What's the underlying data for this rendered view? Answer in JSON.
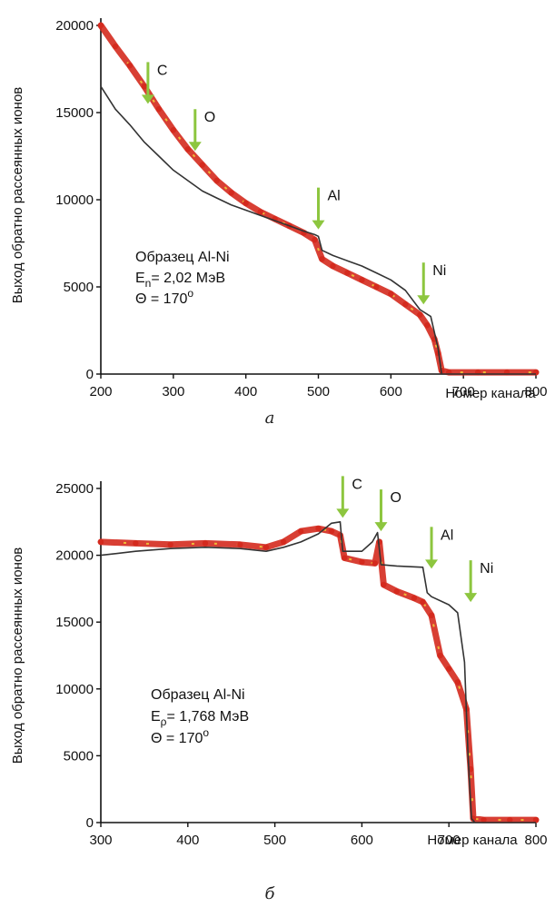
{
  "chart_data": [
    {
      "type": "line",
      "panel_label": "а",
      "xlabel": "Номер канала",
      "ylabel": "Выход обратно рассеянных ионов",
      "xlim": [
        200,
        800
      ],
      "ylim": [
        0,
        20000
      ],
      "x_ticks": [
        "200",
        "300",
        "400",
        "500",
        "600",
        "700",
        "800"
      ],
      "y_ticks": [
        "0",
        "5000",
        "10000",
        "15000",
        "20000"
      ],
      "grid": false,
      "annotation_lines": [
        "Образец Al-Ni",
        "E",
        "n",
        "= 2,02 МэВ",
        "Θ = 170",
        "o"
      ],
      "element_markers": [
        {
          "label": "C",
          "x": 265,
          "y_tip": 15500
        },
        {
          "label": "O",
          "x": 330,
          "y_tip": 12800
        },
        {
          "label": "Al",
          "x": 500,
          "y_tip": 8300
        },
        {
          "label": "Ni",
          "x": 645,
          "y_tip": 4000
        }
      ],
      "series": [
        {
          "role": "experimental",
          "color": "#d42a1e",
          "x": [
            200,
            220,
            240,
            260,
            280,
            300,
            320,
            340,
            360,
            380,
            400,
            420,
            440,
            460,
            480,
            495,
            505,
            520,
            540,
            560,
            580,
            600,
            620,
            640,
            650,
            660,
            665,
            670,
            680,
            720,
            760,
            800
          ],
          "y": [
            20000,
            18800,
            17700,
            16500,
            15200,
            14000,
            12900,
            12000,
            11100,
            10400,
            9800,
            9300,
            8900,
            8500,
            8100,
            7700,
            6600,
            6200,
            5800,
            5400,
            5000,
            4600,
            4000,
            3400,
            2800,
            2000,
            1200,
            200,
            100,
            100,
            100,
            100
          ]
        },
        {
          "role": "simulated",
          "color": "#333333",
          "x": [
            200,
            220,
            240,
            260,
            280,
            300,
            320,
            340,
            360,
            380,
            400,
            420,
            440,
            460,
            480,
            495,
            500,
            505,
            520,
            540,
            560,
            580,
            600,
            620,
            640,
            655,
            665,
            670,
            680,
            720,
            760,
            800
          ],
          "y": [
            16500,
            15200,
            14300,
            13300,
            12500,
            11700,
            11100,
            10500,
            10100,
            9700,
            9400,
            9100,
            8800,
            8500,
            8200,
            8000,
            7900,
            7100,
            6800,
            6500,
            6200,
            5800,
            5400,
            4800,
            3700,
            3300,
            1500,
            0,
            0,
            0,
            0,
            0
          ]
        }
      ]
    },
    {
      "type": "line",
      "panel_label": "б",
      "xlabel": "Номер канала",
      "ylabel": "Выход обратно рассеянных ионов",
      "xlim": [
        300,
        800
      ],
      "ylim": [
        0,
        25000
      ],
      "x_ticks": [
        "300",
        "400",
        "500",
        "600",
        "700",
        "800"
      ],
      "y_ticks": [
        "0",
        "5000",
        "10000",
        "15000",
        "20000",
        "25000"
      ],
      "grid": false,
      "annotation_lines": [
        "Образец Al-Ni",
        "E",
        "ρ",
        "= 1,768 МэВ",
        "Θ = 170",
        "o"
      ],
      "element_markers": [
        {
          "label": "C",
          "x": 578,
          "y_tip": 22800
        },
        {
          "label": "O",
          "x": 622,
          "y_tip": 21800
        },
        {
          "label": "Al",
          "x": 680,
          "y_tip": 19000
        },
        {
          "label": "Ni",
          "x": 725,
          "y_tip": 16500
        }
      ],
      "series": [
        {
          "role": "experimental",
          "color": "#d42a1e",
          "x": [
            300,
            340,
            380,
            420,
            460,
            490,
            510,
            530,
            550,
            565,
            575,
            580,
            600,
            615,
            620,
            625,
            640,
            660,
            670,
            680,
            690,
            700,
            710,
            720,
            725,
            728,
            740,
            770,
            800
          ],
          "y": [
            21000,
            20900,
            20800,
            20900,
            20800,
            20600,
            21000,
            21800,
            22000,
            21800,
            21500,
            19800,
            19500,
            19400,
            21000,
            17800,
            17300,
            16800,
            16500,
            15500,
            12500,
            11500,
            10500,
            8500,
            4000,
            300,
            200,
            200,
            200
          ]
        },
        {
          "role": "simulated",
          "color": "#333333",
          "x": [
            300,
            340,
            380,
            420,
            460,
            490,
            510,
            530,
            550,
            565,
            575,
            578,
            600,
            612,
            618,
            622,
            640,
            670,
            675,
            680,
            700,
            710,
            718,
            722,
            726,
            730,
            760,
            800
          ],
          "y": [
            20000,
            20300,
            20500,
            20600,
            20500,
            20300,
            20600,
            21000,
            21600,
            22400,
            22500,
            20300,
            20300,
            21000,
            21700,
            19300,
            19200,
            19100,
            17200,
            16900,
            16300,
            15700,
            12000,
            5000,
            300,
            0,
            0,
            0
          ]
        }
      ]
    }
  ],
  "captions": [
    "а",
    "б"
  ]
}
